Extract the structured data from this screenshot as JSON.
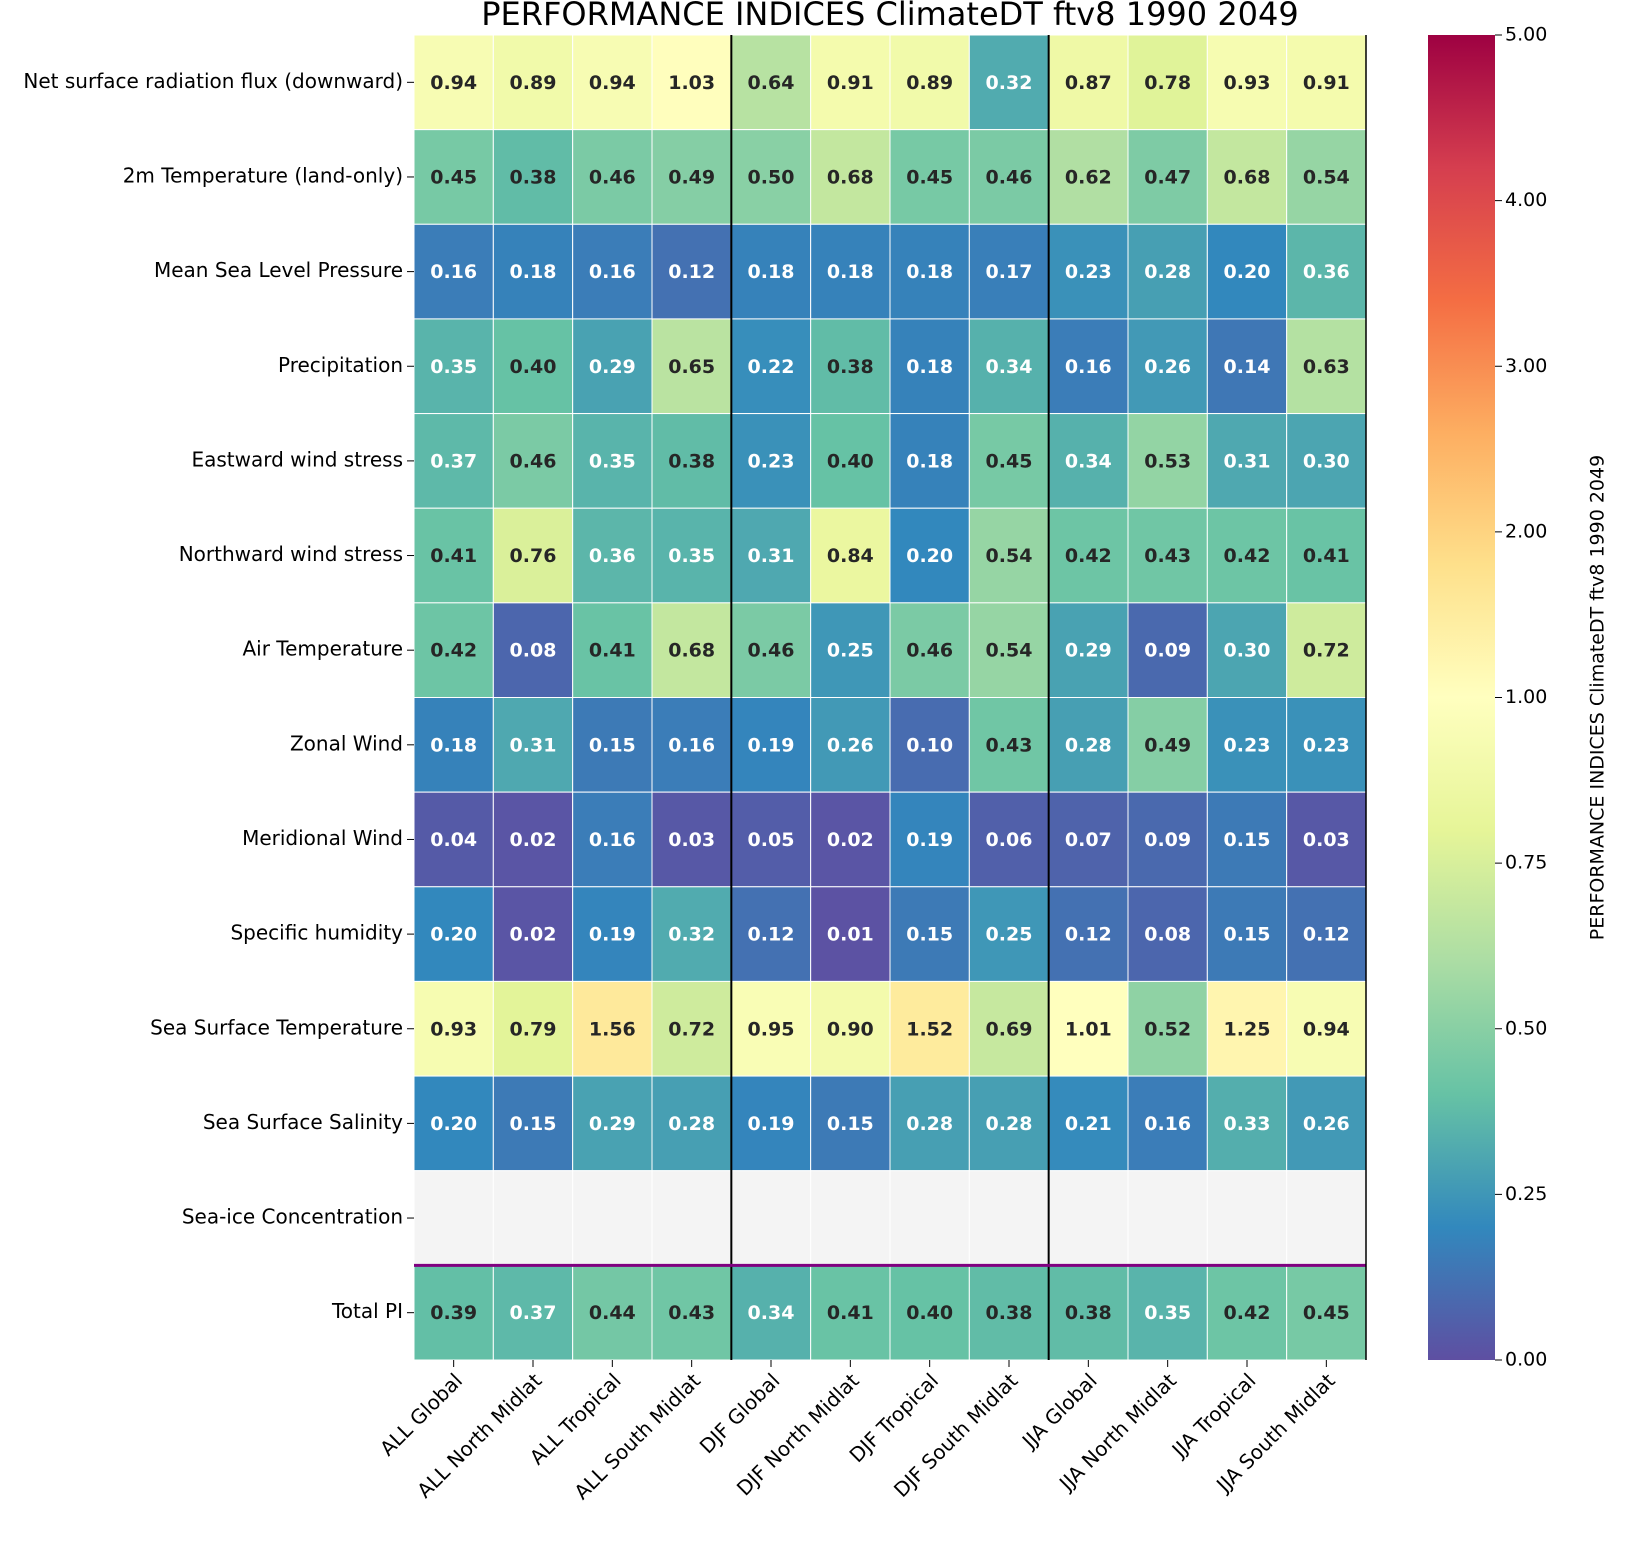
{
  "chart_data": {
    "type": "heatmap",
    "title": "PERFORMANCE INDICES ClimateDT ftv8 1990 2049",
    "colorbar_label": "PERFORMANCE INDICES ClimateDT ftv8 1990 2049",
    "columns": [
      "ALL Global",
      "ALL North Midlat",
      "ALL Tropical",
      "ALL South Midlat",
      "DJF Global",
      "DJF North Midlat",
      "DJF Tropical",
      "DJF South Midlat",
      "JJA Global",
      "JJA North Midlat",
      "JJA Tropical",
      "JJA South Midlat"
    ],
    "rows": [
      "Net surface radiation flux (downward)",
      "2m Temperature (land-only)",
      "Mean Sea Level Pressure",
      "Precipitation",
      "Eastward wind stress",
      "Northward wind stress",
      "Air Temperature",
      "Zonal Wind",
      "Meridional Wind",
      "Specific humidity",
      "Sea Surface Temperature",
      "Sea Surface Salinity",
      "Sea-ice Concentration",
      "Total PI"
    ],
    "values": [
      [
        0.94,
        0.89,
        0.94,
        1.03,
        0.64,
        0.91,
        0.89,
        0.32,
        0.87,
        0.78,
        0.93,
        0.91
      ],
      [
        0.45,
        0.38,
        0.46,
        0.49,
        0.5,
        0.68,
        0.45,
        0.46,
        0.62,
        0.47,
        0.68,
        0.54
      ],
      [
        0.16,
        0.18,
        0.16,
        0.12,
        0.18,
        0.18,
        0.18,
        0.17,
        0.23,
        0.28,
        0.2,
        0.36
      ],
      [
        0.35,
        0.4,
        0.29,
        0.65,
        0.22,
        0.38,
        0.18,
        0.34,
        0.16,
        0.26,
        0.14,
        0.63
      ],
      [
        0.37,
        0.46,
        0.35,
        0.38,
        0.23,
        0.4,
        0.18,
        0.45,
        0.34,
        0.53,
        0.31,
        0.3
      ],
      [
        0.41,
        0.76,
        0.36,
        0.35,
        0.31,
        0.84,
        0.2,
        0.54,
        0.42,
        0.43,
        0.42,
        0.41
      ],
      [
        0.42,
        0.08,
        0.41,
        0.68,
        0.46,
        0.25,
        0.46,
        0.54,
        0.29,
        0.09,
        0.3,
        0.72
      ],
      [
        0.18,
        0.31,
        0.15,
        0.16,
        0.19,
        0.26,
        0.1,
        0.43,
        0.28,
        0.49,
        0.23,
        0.23
      ],
      [
        0.04,
        0.02,
        0.16,
        0.03,
        0.05,
        0.02,
        0.19,
        0.06,
        0.07,
        0.09,
        0.15,
        0.03
      ],
      [
        0.2,
        0.02,
        0.19,
        0.32,
        0.12,
        0.01,
        0.15,
        0.25,
        0.12,
        0.08,
        0.15,
        0.12
      ],
      [
        0.93,
        0.79,
        1.56,
        0.72,
        0.95,
        0.9,
        1.52,
        0.69,
        1.01,
        0.52,
        1.25,
        0.94
      ],
      [
        0.2,
        0.15,
        0.29,
        0.28,
        0.19,
        0.15,
        0.28,
        0.28,
        0.21,
        0.16,
        0.33,
        0.26
      ],
      [
        null,
        null,
        null,
        null,
        null,
        null,
        null,
        null,
        null,
        null,
        null,
        null
      ],
      [
        0.39,
        0.37,
        0.44,
        0.43,
        0.34,
        0.41,
        0.4,
        0.38,
        0.38,
        0.35,
        0.42,
        0.45
      ]
    ],
    "value_labels": [
      [
        "0.94",
        "0.89",
        "0.94",
        "1.03",
        "0.64",
        "0.91",
        "0.89",
        "0.32",
        "0.87",
        "0.78",
        "0.93",
        "0.91"
      ],
      [
        "0.45",
        "0.38",
        "0.46",
        "0.49",
        "0.50",
        "0.68",
        "0.45",
        "0.46",
        "0.62",
        "0.47",
        "0.68",
        "0.54"
      ],
      [
        "0.16",
        "0.18",
        "0.16",
        "0.12",
        "0.18",
        "0.18",
        "0.18",
        "0.17",
        "0.23",
        "0.28",
        "0.20",
        "0.36"
      ],
      [
        "0.35",
        "0.40",
        "0.29",
        "0.65",
        "0.22",
        "0.38",
        "0.18",
        "0.34",
        "0.16",
        "0.26",
        "0.14",
        "0.63"
      ],
      [
        "0.37",
        "0.46",
        "0.35",
        "0.38",
        "0.23",
        "0.40",
        "0.18",
        "0.45",
        "0.34",
        "0.53",
        "0.31",
        "0.30"
      ],
      [
        "0.41",
        "0.76",
        "0.36",
        "0.35",
        "0.31",
        "0.84",
        "0.20",
        "0.54",
        "0.42",
        "0.43",
        "0.42",
        "0.41"
      ],
      [
        "0.42",
        "0.08",
        "0.41",
        "0.68",
        "0.46",
        "0.25",
        "0.46",
        "0.54",
        "0.29",
        "0.09",
        "0.30",
        "0.72"
      ],
      [
        "0.18",
        "0.31",
        "0.15",
        "0.16",
        "0.19",
        "0.26",
        "0.10",
        "0.43",
        "0.28",
        "0.49",
        "0.23",
        "0.23"
      ],
      [
        "0.04",
        "0.02",
        "0.16",
        "0.03",
        "0.05",
        "0.02",
        "0.19",
        "0.06",
        "0.07",
        "0.09",
        "0.15",
        "0.03"
      ],
      [
        "0.20",
        "0.02",
        "0.19",
        "0.32",
        "0.12",
        "0.01",
        "0.15",
        "0.25",
        "0.12",
        "0.08",
        "0.15",
        "0.12"
      ],
      [
        "0.93",
        "0.79",
        "1.56",
        "0.72",
        "0.95",
        "0.90",
        "1.52",
        "0.69",
        "1.01",
        "0.52",
        "1.25",
        "0.94"
      ],
      [
        "0.20",
        "0.15",
        "0.29",
        "0.28",
        "0.19",
        "0.15",
        "0.28",
        "0.28",
        "0.21",
        "0.16",
        "0.33",
        "0.26"
      ],
      [
        null,
        null,
        null,
        null,
        null,
        null,
        null,
        null,
        null,
        null,
        null,
        null
      ],
      [
        "0.39",
        "0.37",
        "0.44",
        "0.43",
        "0.34",
        "0.41",
        "0.40",
        "0.38",
        "0.38",
        "0.35",
        "0.42",
        "0.45"
      ]
    ],
    "colorbar_ticks": [
      {
        "value": 0,
        "label": "0.00"
      },
      {
        "value": 0.25,
        "label": "0.25"
      },
      {
        "value": 0.5,
        "label": "0.50"
      },
      {
        "value": 0.75,
        "label": "0.75"
      },
      {
        "value": 1,
        "label": "1.00"
      },
      {
        "value": 2,
        "label": "2.00"
      },
      {
        "value": 3,
        "label": "3.00"
      },
      {
        "value": 4,
        "label": "4.00"
      },
      {
        "value": 5,
        "label": "5.00"
      }
    ],
    "colors": [
      "#5e4fa2",
      "#3288bd",
      "#66c2a5",
      "#abdda4",
      "#e6f598",
      "#ffffbf",
      "#fee08b",
      "#fdae61",
      "#f46d43",
      "#d53e4f",
      "#9e0142"
    ],
    "missing_color": "#f4f4f4"
  }
}
